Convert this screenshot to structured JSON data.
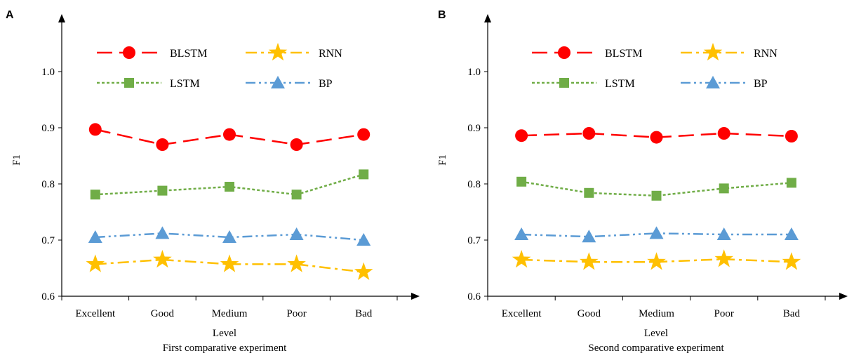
{
  "chart_data": [
    {
      "type": "line",
      "panel_label": "A",
      "title": "First comparative experiment",
      "xlabel": "Level",
      "ylabel": "F1",
      "categories": [
        "Excellent",
        "Good",
        "Medium",
        "Poor",
        "Bad"
      ],
      "ylim": [
        0.6,
        1.1
      ],
      "yticks": [
        "0.6",
        "0.7",
        "0.8",
        "0.9",
        "1.0"
      ],
      "grid": false,
      "legend_position": "top",
      "series": [
        {
          "name": "BLSTM",
          "values": [
            0.897,
            0.87,
            0.888,
            0.87,
            0.888
          ],
          "color": "#ff0000",
          "marker": "circle",
          "dash": "dash"
        },
        {
          "name": "RNN",
          "values": [
            0.657,
            0.665,
            0.657,
            0.657,
            0.643
          ],
          "color": "#ffc000",
          "marker": "star",
          "dash": "dashdot"
        },
        {
          "name": "LSTM",
          "values": [
            0.781,
            0.788,
            0.795,
            0.781,
            0.817
          ],
          "color": "#70ad47",
          "marker": "square",
          "dash": "dot"
        },
        {
          "name": "BP",
          "values": [
            0.705,
            0.712,
            0.705,
            0.71,
            0.7
          ],
          "color": "#5b9bd5",
          "marker": "triangle",
          "dash": "dashdotdot"
        }
      ]
    },
    {
      "type": "line",
      "panel_label": "B",
      "title": "Second comparative experiment",
      "xlabel": "Level",
      "ylabel": "F1",
      "categories": [
        "Excellent",
        "Good",
        "Medium",
        "Poor",
        "Bad"
      ],
      "ylim": [
        0.6,
        1.1
      ],
      "yticks": [
        "0.6",
        "0.7",
        "0.8",
        "0.9",
        "1.0"
      ],
      "grid": false,
      "legend_position": "top",
      "series": [
        {
          "name": "BLSTM",
          "values": [
            0.886,
            0.89,
            0.883,
            0.89,
            0.885
          ],
          "color": "#ff0000",
          "marker": "circle",
          "dash": "dash"
        },
        {
          "name": "RNN",
          "values": [
            0.665,
            0.661,
            0.661,
            0.666,
            0.661
          ],
          "color": "#ffc000",
          "marker": "star",
          "dash": "dashdot"
        },
        {
          "name": "LSTM",
          "values": [
            0.804,
            0.784,
            0.779,
            0.792,
            0.802
          ],
          "color": "#70ad47",
          "marker": "square",
          "dash": "dot"
        },
        {
          "name": "BP",
          "values": [
            0.71,
            0.706,
            0.712,
            0.71,
            0.71
          ],
          "color": "#5b9bd5",
          "marker": "triangle",
          "dash": "dashdotdot"
        }
      ]
    }
  ]
}
